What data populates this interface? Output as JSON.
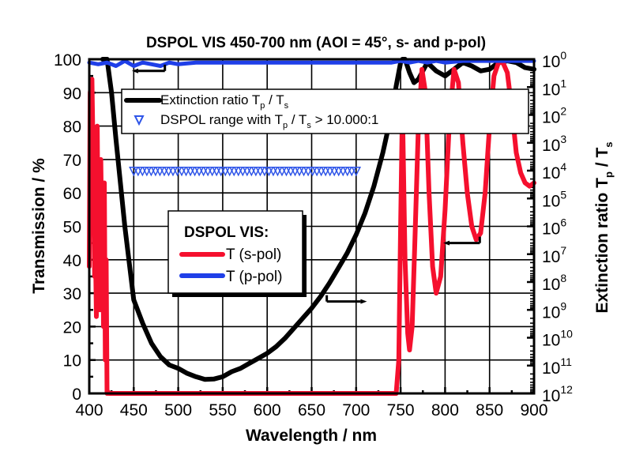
{
  "chart_data": {
    "type": "line",
    "title": "DSPOL VIS 450-700 nm (AOI = 45°, s- and p-pol)",
    "xlabel": "Wavelength / nm",
    "ylabel": "Transmission / %",
    "y2label": {
      "main": "Extinction ratio T",
      "sub1": "p",
      "mid": " / T",
      "sub2": "s"
    },
    "xlim": [
      400,
      900
    ],
    "ylim": [
      0,
      100
    ],
    "grid": true,
    "xticks": [
      "400",
      "450",
      "500",
      "550",
      "600",
      "650",
      "700",
      "750",
      "800",
      "850",
      "900"
    ],
    "yticks": [
      "0",
      "10",
      "20",
      "30",
      "40",
      "50",
      "60",
      "70",
      "80",
      "90",
      "100"
    ],
    "y2ticks": [
      {
        "base": "10",
        "exp": "0"
      },
      {
        "base": "10",
        "exp": "1"
      },
      {
        "base": "10",
        "exp": "2"
      },
      {
        "base": "10",
        "exp": "3"
      },
      {
        "base": "10",
        "exp": "4"
      },
      {
        "base": "10",
        "exp": "5"
      },
      {
        "base": "10",
        "exp": "6"
      },
      {
        "base": "10",
        "exp": "7"
      },
      {
        "base": "10",
        "exp": "8"
      },
      {
        "base": "10",
        "exp": "9"
      },
      {
        "base": "10",
        "exp": "10"
      },
      {
        "base": "10",
        "exp": "11"
      },
      {
        "base": "10",
        "exp": "12"
      }
    ],
    "colors": {
      "s_pol": "#f5102e",
      "p_pol": "#1f3fe8",
      "extinction": "#000000",
      "range_marker": "#2f55e8"
    },
    "series": [
      {
        "name": "T (p-pol)",
        "x": [
          400,
          410,
          420,
          430,
          440,
          450,
          460,
          470,
          480,
          490,
          500,
          520,
          540,
          560,
          580,
          600,
          620,
          640,
          660,
          680,
          700,
          720,
          740,
          750,
          760,
          770,
          780,
          790,
          800,
          820,
          840,
          860,
          880,
          900
        ],
        "values": [
          99,
          98.5,
          99,
          98,
          99.5,
          98,
          99,
          98.5,
          98,
          99,
          98.5,
          99,
          99,
          99,
          99,
          99,
          99,
          99,
          99,
          99,
          99,
          99,
          99,
          99.5,
          99,
          99.5,
          99,
          99.5,
          99,
          99.5,
          99.5,
          99.5,
          99.5,
          99.5
        ]
      },
      {
        "name": "T (s-pol)",
        "x": [
          400,
          401,
          403,
          405,
          406,
          407,
          408,
          409,
          410,
          411,
          412,
          413,
          414,
          415,
          416,
          417,
          418,
          419,
          420,
          421,
          422,
          430,
          500,
          600,
          700,
          740,
          745,
          748,
          750,
          752,
          755,
          758,
          760,
          763,
          766,
          770,
          774,
          778,
          782,
          786,
          790,
          795,
          800,
          805,
          810,
          815,
          820,
          825,
          830,
          835,
          840,
          845,
          850,
          855,
          860,
          865,
          870,
          875,
          880,
          885,
          890,
          895,
          900
        ],
        "values": [
          38,
          90,
          94,
          60,
          35,
          42,
          23,
          80,
          45,
          65,
          25,
          70,
          48,
          62,
          20,
          63,
          10,
          40,
          0,
          0.5,
          0,
          0,
          0,
          0,
          0,
          0,
          0,
          10,
          50,
          86,
          40,
          18,
          13,
          20,
          45,
          80,
          97,
          90,
          60,
          38,
          30,
          35,
          55,
          82,
          97,
          93,
          75,
          60,
          50,
          46,
          48,
          60,
          80,
          95,
          99,
          99,
          96,
          85,
          72,
          66,
          63,
          62,
          63
        ]
      },
      {
        "name": "Extinction ratio Tp / Ts",
        "x": [
          415,
          420,
          425,
          430,
          440,
          450,
          460,
          470,
          480,
          490,
          500,
          510,
          520,
          530,
          540,
          550,
          560,
          570,
          580,
          590,
          600,
          610,
          620,
          630,
          640,
          650,
          660,
          670,
          680,
          690,
          700,
          710,
          720,
          730,
          740,
          745,
          750,
          752,
          755,
          760,
          765,
          770,
          780,
          790,
          800,
          810,
          820,
          830,
          840,
          850,
          860,
          870,
          880,
          890,
          900
        ],
        "values": [
          100,
          100,
          90,
          76,
          50,
          28,
          21,
          15,
          11,
          8.5,
          7.5,
          6,
          5,
          4.2,
          4.3,
          5,
          6.5,
          7.5,
          9,
          10.5,
          12,
          14,
          16.5,
          19.5,
          22.5,
          25.5,
          29,
          33,
          37.5,
          42,
          47.5,
          54,
          62,
          72,
          84,
          92,
          99,
          100,
          100,
          96,
          93,
          94,
          99,
          96.5,
          95,
          97,
          99,
          98,
          96.5,
          97,
          99,
          99.5,
          99,
          97.5,
          97
        ]
      }
    ],
    "range_marker": {
      "name": "DSPOL range with Tp / Ts > 10.000:1",
      "x_start": 450,
      "x_end": 700,
      "y": 66.5,
      "count": 52
    },
    "axis_arrows": [
      {
        "series": "Extinction ratio Tp / Ts",
        "x_from": 485,
        "x_to": 455,
        "y": 96.5,
        "direction": "right-axis"
      },
      {
        "series": "Extinction ratio Tp / Ts",
        "x_from": 667,
        "x_to": 705,
        "y": 27.5,
        "direction": "right-axis"
      },
      {
        "series": "T (s-pol)",
        "x_from": 839,
        "x_to": 805,
        "y": 45,
        "direction": "left-axis"
      }
    ],
    "legend1": {
      "line1": {
        "main": "Extinction ratio T",
        "sub1": "p",
        "mid": " / T",
        "sub2": "s"
      },
      "line2": {
        "pre": "DSPOL range with T",
        "sub1": "p",
        "mid": " / T",
        "sub2": "s",
        "post": " > 10.000:1"
      },
      "placement": "top-left"
    },
    "legend2": {
      "title": "DSPOL VIS:",
      "items": [
        "T (s-pol)",
        "T (p-pol)"
      ],
      "placement": "center-left"
    }
  }
}
